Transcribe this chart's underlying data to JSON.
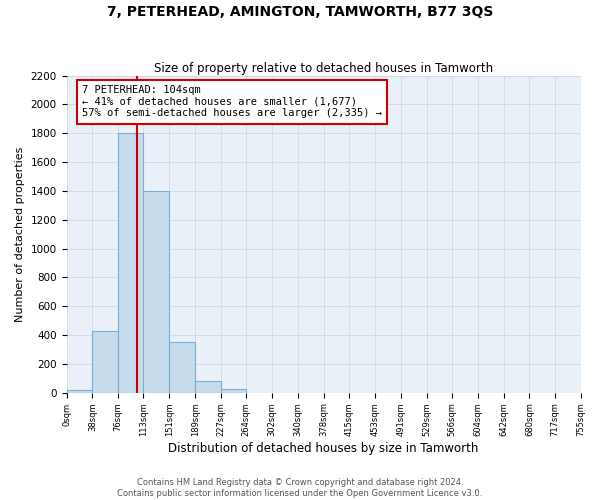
{
  "title": "7, PETERHEAD, AMINGTON, TAMWORTH, B77 3QS",
  "subtitle": "Size of property relative to detached houses in Tamworth",
  "xlabel": "Distribution of detached houses by size in Tamworth",
  "ylabel": "Number of detached properties",
  "bar_edges": [
    0,
    38,
    76,
    113,
    151,
    189,
    227,
    264,
    302,
    340,
    378,
    415,
    453,
    491,
    529,
    566,
    604,
    642,
    680,
    717,
    755
  ],
  "bar_heights": [
    20,
    430,
    1800,
    1400,
    350,
    80,
    25,
    0,
    0,
    0,
    0,
    0,
    0,
    0,
    0,
    0,
    0,
    0,
    0,
    0
  ],
  "bar_color": "#c6dcec",
  "bar_edgecolor": "#7bafd4",
  "property_size": 104,
  "vline_color": "#cc0000",
  "annotation_text": "7 PETERHEAD: 104sqm\n← 41% of detached houses are smaller (1,677)\n57% of semi-detached houses are larger (2,335) →",
  "annotation_box_color": "#ffffff",
  "annotation_box_edgecolor": "#cc0000",
  "ylim": [
    0,
    2200
  ],
  "yticks": [
    0,
    200,
    400,
    600,
    800,
    1000,
    1200,
    1400,
    1600,
    1800,
    2000,
    2200
  ],
  "tick_labels": [
    "0sqm",
    "38sqm",
    "76sqm",
    "113sqm",
    "151sqm",
    "189sqm",
    "227sqm",
    "264sqm",
    "302sqm",
    "340sqm",
    "378sqm",
    "415sqm",
    "453sqm",
    "491sqm",
    "529sqm",
    "566sqm",
    "604sqm",
    "642sqm",
    "680sqm",
    "717sqm",
    "755sqm"
  ],
  "grid_color": "#d0d8e8",
  "background_color": "#eaf0f8",
  "footer_line1": "Contains HM Land Registry data © Crown copyright and database right 2024.",
  "footer_line2": "Contains public sector information licensed under the Open Government Licence v3.0."
}
